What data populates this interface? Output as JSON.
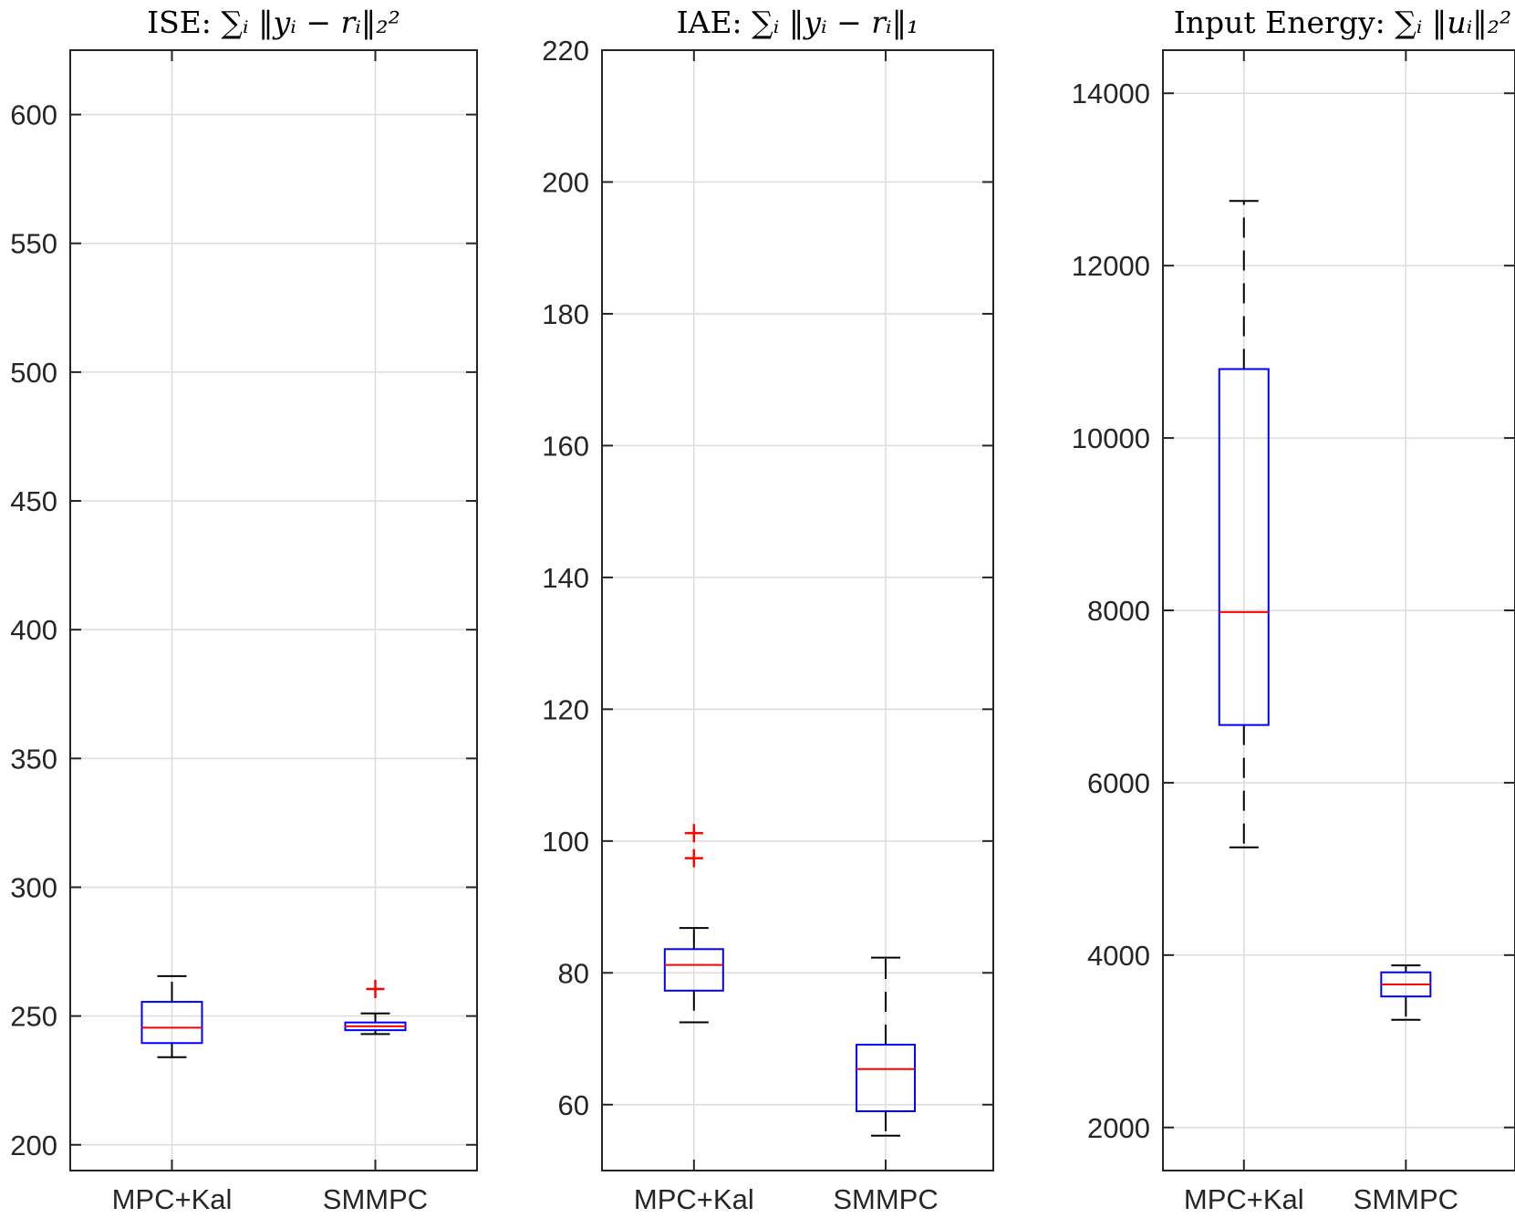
{
  "chart_data": [
    {
      "type": "boxplot",
      "title": "ISE: ∑ᵢ ‖yᵢ − rᵢ‖₂²",
      "title_parts": {
        "prefix": "ISE:",
        "formula": "∑ᵢ ‖yᵢ − rᵢ‖₂²"
      },
      "categories": [
        "MPC+Kal",
        "SMMPC"
      ],
      "ylim": [
        190,
        625
      ],
      "yticks": [
        200,
        250,
        300,
        350,
        400,
        450,
        500,
        550,
        600
      ],
      "grid": true,
      "boxes": [
        {
          "name": "MPC+Kal",
          "whisker_low": 234,
          "q1": 239.5,
          "median": 245.5,
          "q3": 255.5,
          "whisker_high": 265.5,
          "outliers": []
        },
        {
          "name": "SMMPC",
          "whisker_low": 243,
          "q1": 244.5,
          "median": 246,
          "q3": 247.5,
          "whisker_high": 251,
          "outliers": [
            260.5
          ]
        }
      ]
    },
    {
      "type": "boxplot",
      "title": "IAE: ∑ᵢ ‖yᵢ − rᵢ‖₁",
      "title_parts": {
        "prefix": "IAE:",
        "formula": "∑ᵢ ‖yᵢ − rᵢ‖₁"
      },
      "categories": [
        "MPC+Kal",
        "SMMPC"
      ],
      "ylim": [
        50,
        220
      ],
      "yticks": [
        60,
        80,
        100,
        120,
        140,
        160,
        180,
        200,
        220
      ],
      "grid": true,
      "boxes": [
        {
          "name": "MPC+Kal",
          "whisker_low": 72.5,
          "q1": 77.3,
          "median": 81.2,
          "q3": 83.6,
          "whisker_high": 86.8,
          "outliers": [
            97.4,
            101.2
          ]
        },
        {
          "name": "SMMPC",
          "whisker_low": 55.3,
          "q1": 59,
          "median": 65.4,
          "q3": 69.1,
          "whisker_high": 82.3,
          "outliers": []
        }
      ]
    },
    {
      "type": "boxplot",
      "title": "Input Energy: ∑ᵢ ‖uᵢ‖₂²",
      "title_parts": {
        "prefix": "Input Energy:",
        "formula": "∑ᵢ ‖uᵢ‖₂²"
      },
      "categories": [
        "MPC+Kal",
        "SMMPC"
      ],
      "ylim": [
        1500,
        14500
      ],
      "yticks": [
        2000,
        4000,
        6000,
        8000,
        10000,
        12000,
        14000
      ],
      "grid": true,
      "boxes": [
        {
          "name": "MPC+Kal",
          "whisker_low": 5250,
          "q1": 6670,
          "median": 7980,
          "q3": 10800,
          "whisker_high": 12750,
          "outliers": []
        },
        {
          "name": "SMMPC",
          "whisker_low": 3250,
          "q1": 3520,
          "median": 3660,
          "q3": 3800,
          "whisker_high": 3880,
          "outliers": []
        }
      ]
    }
  ],
  "colors": {
    "box": "#0000ff",
    "median": "#ff0000",
    "whisker": "#000000",
    "outlier": "#ff0000",
    "grid": "#dcdcdc",
    "axis": "#262626"
  }
}
